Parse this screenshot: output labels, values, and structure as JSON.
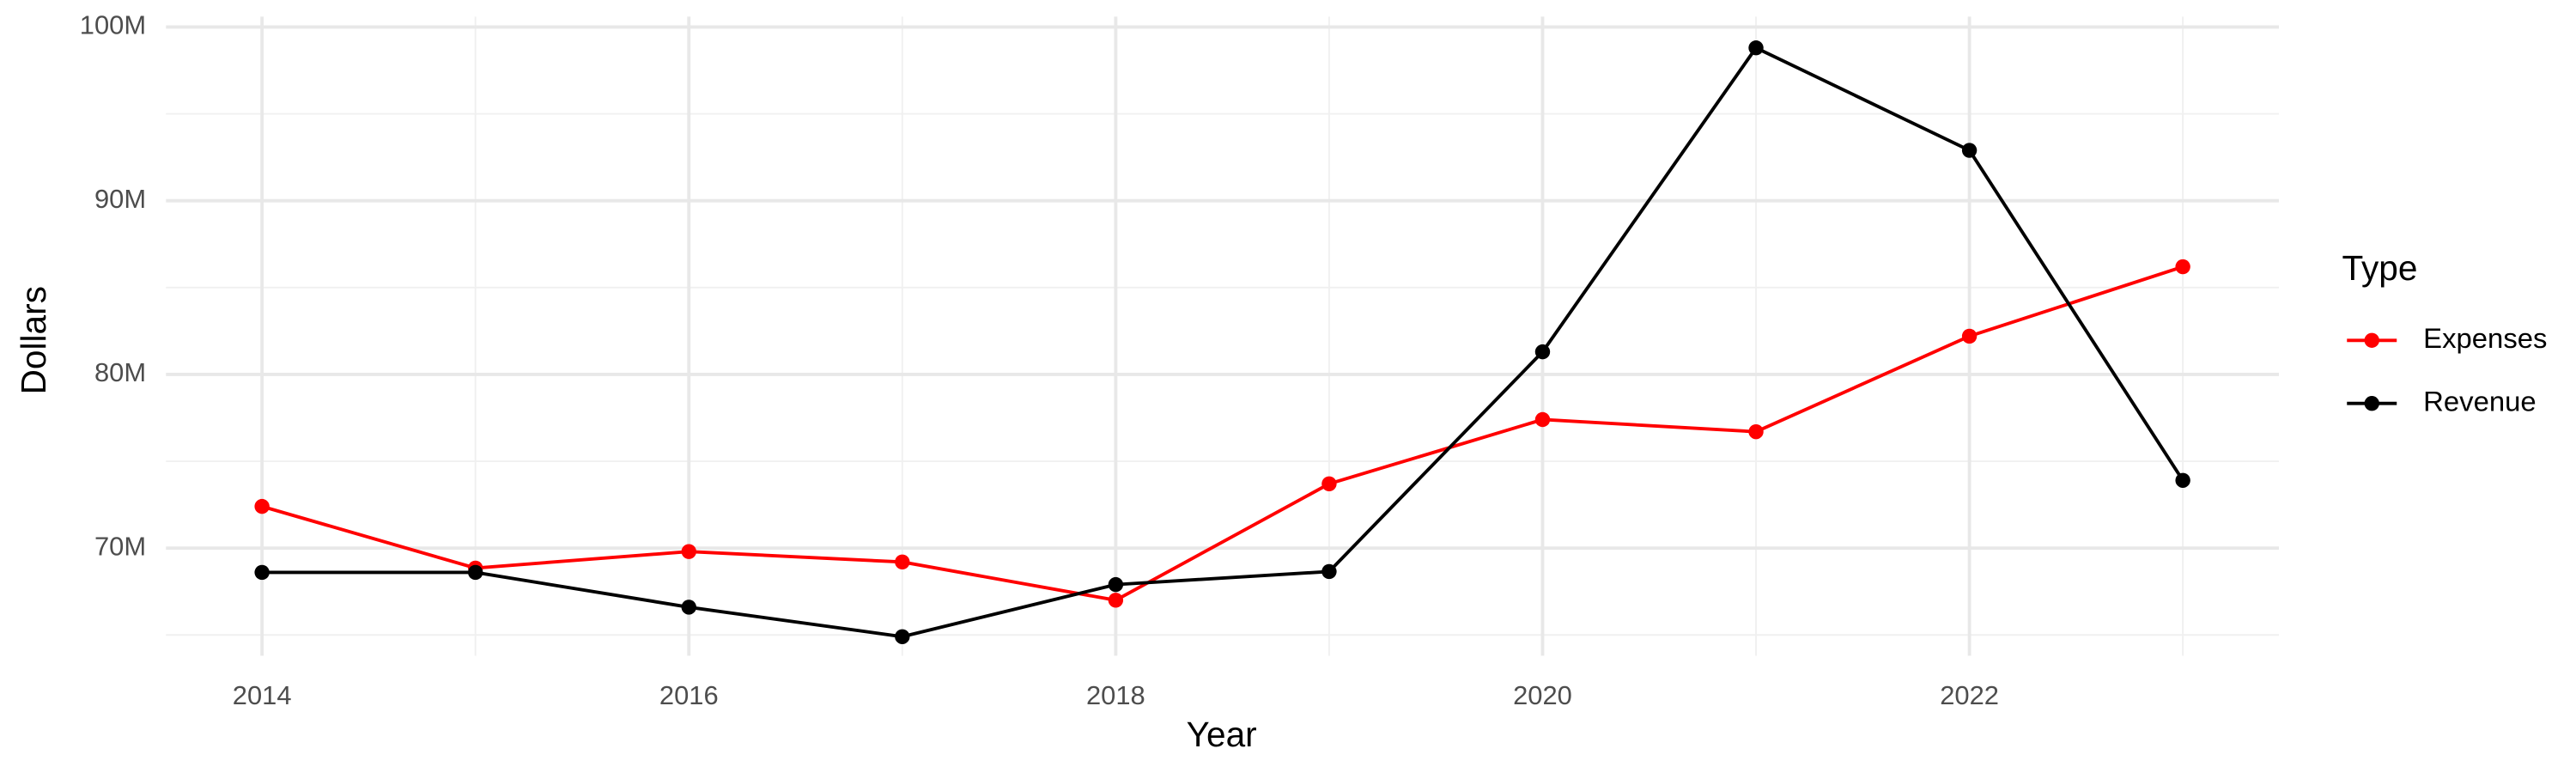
{
  "chart_data": {
    "type": "line",
    "x_label": "Year",
    "y_label": "Dollars",
    "legend_title": "Type",
    "legend_position": "right",
    "grid": true,
    "x": [
      2014,
      2015,
      2016,
      2017,
      2018,
      2019,
      2020,
      2021,
      2022,
      2023
    ],
    "series": [
      {
        "name": "Expenses",
        "color": "#ff0000",
        "values": [
          72400000,
          68850000,
          69800000,
          69200000,
          67000000,
          73700000,
          77400000,
          76700000,
          82200000,
          86200000
        ]
      },
      {
        "name": "Revenue",
        "color": "#000000",
        "values": [
          68600000,
          68600000,
          66600000,
          64900000,
          67900000,
          68650000,
          81300000,
          98800000,
          92900000,
          73900000
        ]
      }
    ],
    "xlim": [
      2013.55,
      2023.45
    ],
    "xticks": [
      2014,
      2016,
      2018,
      2020,
      2022
    ],
    "ylim": [
      63800000,
      100600000
    ],
    "yticks": [
      {
        "value": 70000000,
        "label": "70M"
      },
      {
        "value": 80000000,
        "label": "80M"
      },
      {
        "value": 90000000,
        "label": "90M"
      },
      {
        "value": 100000000,
        "label": "100M"
      }
    ]
  }
}
